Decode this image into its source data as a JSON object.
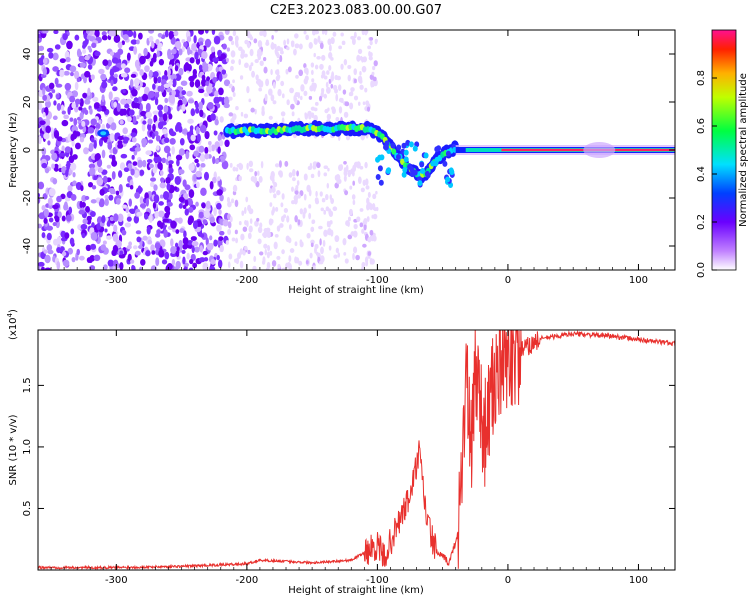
{
  "title": "C2E3.2023.083.00.00.G07",
  "chart_data": [
    {
      "type": "heatmap",
      "xlabel": "Height of straight line (km)",
      "ylabel": "Frequency (Hz)",
      "xlim": [
        -360,
        128
      ],
      "ylim": [
        -50,
        50
      ],
      "x_ticks": [
        -300,
        -200,
        -100,
        0,
        100
      ],
      "y_ticks": [
        -40,
        -20,
        0,
        20,
        40
      ],
      "colorbar": {
        "label": "Normalized spectral amplitude",
        "range": [
          0,
          1
        ],
        "ticks": [
          "0.0",
          "0.2",
          "0.4",
          "0.6",
          "0.8"
        ]
      },
      "ridge": [
        {
          "x": -215,
          "y": 8
        },
        {
          "x": -200,
          "y": 8
        },
        {
          "x": -180,
          "y": 8
        },
        {
          "x": -160,
          "y": 9
        },
        {
          "x": -140,
          "y": 9
        },
        {
          "x": -120,
          "y": 9
        },
        {
          "x": -105,
          "y": 9
        },
        {
          "x": -95,
          "y": 5
        },
        {
          "x": -85,
          "y": -2
        },
        {
          "x": -75,
          "y": -8
        },
        {
          "x": -65,
          "y": -11
        },
        {
          "x": -55,
          "y": -4
        },
        {
          "x": -45,
          "y": 0
        },
        {
          "x": -30,
          "y": 2
        },
        {
          "x": -15,
          "y": 1
        },
        {
          "x": 0,
          "y": 0
        },
        {
          "x": 60,
          "y": 0
        },
        {
          "x": 128,
          "y": 0
        }
      ]
    },
    {
      "type": "line",
      "xlabel": "Height of straight line (km)",
      "ylabel": "SNR (10 * v/v)",
      "y_multiplier": "(x10",
      "y_multiplier_exp": "4",
      "y_multiplier_close": ")",
      "xlim": [
        -360,
        128
      ],
      "ylim": [
        0,
        1.95
      ],
      "x_ticks": [
        -300,
        -200,
        -100,
        0,
        100
      ],
      "y_ticks": [
        "0.5",
        "1.0",
        "1.5"
      ],
      "series": [
        {
          "color": "#e8302d",
          "points": [
            {
              "x": -360,
              "y": 0.02
            },
            {
              "x": -300,
              "y": 0.02
            },
            {
              "x": -250,
              "y": 0.03
            },
            {
              "x": -200,
              "y": 0.05
            },
            {
              "x": -190,
              "y": 0.08
            },
            {
              "x": -150,
              "y": 0.06
            },
            {
              "x": -120,
              "y": 0.08
            },
            {
              "x": -100,
              "y": 0.2
            },
            {
              "x": -95,
              "y": 0.1
            },
            {
              "x": -85,
              "y": 0.35
            },
            {
              "x": -75,
              "y": 0.6
            },
            {
              "x": -68,
              "y": 0.95
            },
            {
              "x": -62,
              "y": 0.4
            },
            {
              "x": -55,
              "y": 0.15
            },
            {
              "x": -45,
              "y": 0.06
            },
            {
              "x": -38,
              "y": 0.3
            },
            {
              "x": -32,
              "y": 1.6
            },
            {
              "x": -28,
              "y": 0.9
            },
            {
              "x": -25,
              "y": 1.7
            },
            {
              "x": -18,
              "y": 1.1
            },
            {
              "x": -10,
              "y": 1.55
            },
            {
              "x": -2,
              "y": 1.7
            },
            {
              "x": 10,
              "y": 1.78
            },
            {
              "x": 25,
              "y": 1.88
            },
            {
              "x": 50,
              "y": 1.92
            },
            {
              "x": 80,
              "y": 1.9
            },
            {
              "x": 110,
              "y": 1.86
            },
            {
              "x": 128,
              "y": 1.84
            }
          ]
        }
      ]
    }
  ]
}
